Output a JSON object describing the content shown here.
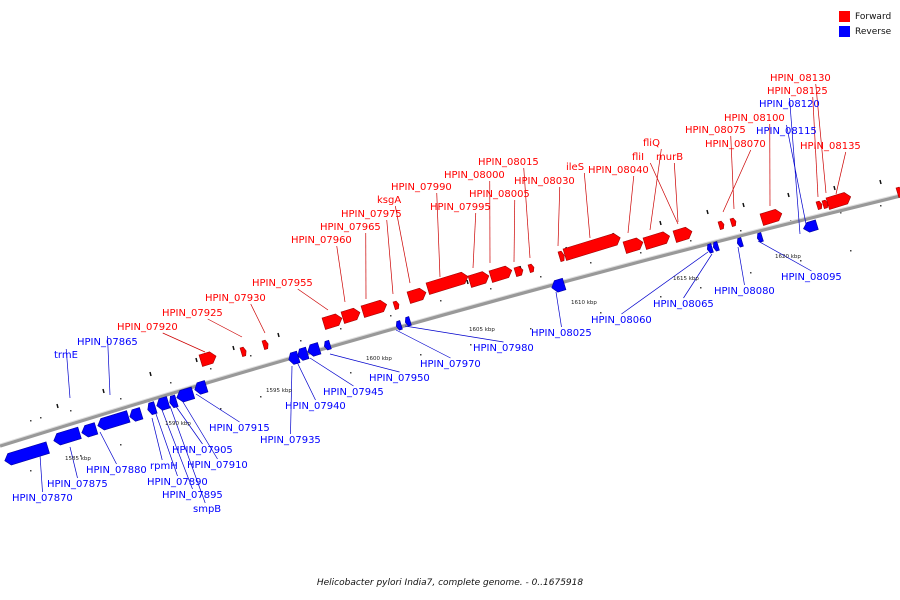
{
  "legend": [
    {
      "label": "Forward",
      "color": "#ff0000"
    },
    {
      "label": "Reverse",
      "color": "#0000ff"
    }
  ],
  "caption": "Helicobacter pylori India7, complete genome. - 0..1675918",
  "colors": {
    "forward": "#ff0000",
    "reverse": "#0000ff",
    "backbone": "#888888",
    "leader_forward": "#cc0000",
    "leader_reverse": "#0000cc"
  },
  "scale_labels": [
    "1585 kbp",
    "1590 kbp",
    "1595 kbp",
    "1600 kbp",
    "1605 kbp",
    "1610 kbp",
    "1615 kbp",
    "1620 kbp"
  ],
  "forward_genes": [
    "HPIN_07920",
    "HPIN_07925",
    "HPIN_07930",
    "HPIN_07955",
    "HPIN_07960",
    "HPIN_07965",
    "HPIN_07975",
    "ksgA",
    "HPIN_07990",
    "HPIN_07995",
    "HPIN_08000",
    "HPIN_08005",
    "HPIN_08015",
    "HPIN_08030",
    "ileS",
    "HPIN_08040",
    "fliQ",
    "fliI",
    "murB",
    "HPIN_08070",
    "HPIN_08075",
    "HPIN_08100",
    "HPIN_08125",
    "HPIN_08130",
    "HPIN_08135"
  ],
  "reverse_genes": [
    "HPIN_07870",
    "HPIN_07875",
    "HPIN_07880",
    "rpmH",
    "HPIN_07890",
    "HPIN_07895",
    "smpB",
    "HPIN_07905",
    "HPIN_07910",
    "HPIN_07915",
    "trmE",
    "HPIN_07865",
    "HPIN_07935",
    "HPIN_07940",
    "HPIN_07945",
    "HPIN_07950",
    "HPIN_07970",
    "HPIN_07980",
    "HPIN_08025",
    "HPIN_08060",
    "HPIN_08065",
    "HPIN_08080",
    "HPIN_08095",
    "HPIN_08120",
    "HPIN_08115"
  ]
}
